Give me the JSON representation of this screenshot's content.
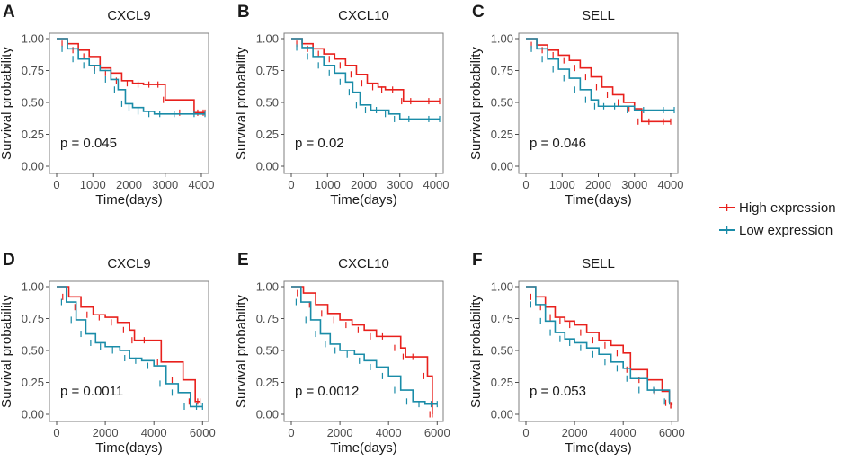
{
  "chart_data": [
    {
      "panel": "A",
      "type": "line",
      "title": "CXCL9",
      "xlabel": "Time(days)",
      "ylabel": "Survival probability",
      "xlim": [
        0,
        4100
      ],
      "ylim": [
        0,
        1
      ],
      "xticks": [
        "0",
        "1000",
        "2000",
        "3000",
        "4000"
      ],
      "yticks": [
        "0.00",
        "0.25",
        "0.50",
        "0.75",
        "1.00"
      ],
      "p_value": "p = 0.045",
      "series": [
        {
          "name": "High expression",
          "x": [
            0,
            300,
            600,
            900,
            1200,
            1500,
            1800,
            2100,
            2400,
            2700,
            2900,
            3000,
            3800,
            4000,
            4100
          ],
          "y": [
            1.0,
            0.96,
            0.91,
            0.86,
            0.77,
            0.73,
            0.67,
            0.65,
            0.64,
            0.64,
            0.64,
            0.52,
            0.42,
            0.42,
            0.42
          ]
        },
        {
          "name": "Low expression",
          "x": [
            0,
            300,
            600,
            900,
            1200,
            1500,
            1700,
            1900,
            2100,
            2400,
            2700,
            3000,
            3500,
            4100
          ],
          "y": [
            1.0,
            0.92,
            0.84,
            0.79,
            0.75,
            0.68,
            0.6,
            0.49,
            0.46,
            0.43,
            0.41,
            0.41,
            0.41,
            0.41
          ]
        }
      ]
    },
    {
      "panel": "B",
      "type": "line",
      "title": "CXCL10",
      "xlabel": "Time(days)",
      "ylabel": "Survival probability",
      "xlim": [
        0,
        4100
      ],
      "ylim": [
        0,
        1
      ],
      "xticks": [
        "0",
        "1000",
        "2000",
        "3000",
        "4000"
      ],
      "yticks": [
        "0.00",
        "0.25",
        "0.50",
        "0.75",
        "1.00"
      ],
      "p_value": "p = 0.02",
      "series": [
        {
          "name": "High expression",
          "x": [
            0,
            300,
            600,
            900,
            1200,
            1500,
            1800,
            2100,
            2400,
            2600,
            3000,
            3100,
            3500,
            4100
          ],
          "y": [
            1.0,
            0.96,
            0.92,
            0.88,
            0.84,
            0.79,
            0.72,
            0.65,
            0.62,
            0.6,
            0.6,
            0.51,
            0.51,
            0.51
          ]
        },
        {
          "name": "Low expression",
          "x": [
            0,
            300,
            600,
            900,
            1200,
            1500,
            1700,
            1900,
            2200,
            2500,
            2700,
            3000,
            3500,
            4100
          ],
          "y": [
            1.0,
            0.93,
            0.86,
            0.79,
            0.73,
            0.66,
            0.58,
            0.48,
            0.44,
            0.44,
            0.41,
            0.37,
            0.37,
            0.37
          ]
        }
      ]
    },
    {
      "panel": "C",
      "type": "line",
      "title": "SELL",
      "xlabel": "Time(days)",
      "ylabel": "Survival probability",
      "xlim": [
        0,
        4100
      ],
      "ylim": [
        0,
        1
      ],
      "xticks": [
        "0",
        "1000",
        "2000",
        "3000",
        "4000"
      ],
      "yticks": [
        "0.00",
        "0.25",
        "0.50",
        "0.75",
        "1.00"
      ],
      "p_value": "p = 0.046",
      "series": [
        {
          "name": "High expression",
          "x": [
            0,
            300,
            600,
            900,
            1200,
            1500,
            1800,
            2100,
            2400,
            2700,
            3000,
            3200,
            3600,
            4000
          ],
          "y": [
            1.0,
            0.95,
            0.91,
            0.87,
            0.83,
            0.77,
            0.7,
            0.62,
            0.56,
            0.5,
            0.45,
            0.35,
            0.35,
            0.35
          ]
        },
        {
          "name": "Low expression",
          "x": [
            0,
            300,
            600,
            900,
            1200,
            1500,
            1800,
            2000,
            2300,
            2600,
            3000,
            3500,
            4100
          ],
          "y": [
            1.0,
            0.92,
            0.84,
            0.76,
            0.69,
            0.6,
            0.52,
            0.47,
            0.47,
            0.47,
            0.44,
            0.44,
            0.44
          ]
        }
      ]
    },
    {
      "panel": "D",
      "type": "line",
      "title": "CXCL9",
      "xlabel": "Time(days)",
      "ylabel": "Survival probability",
      "xlim": [
        0,
        6100
      ],
      "ylim": [
        0,
        1
      ],
      "xticks": [
        "0",
        "2000",
        "4000",
        "6000"
      ],
      "yticks": [
        "0.00",
        "0.25",
        "0.50",
        "0.75",
        "1.00"
      ],
      "p_value": "p = 0.0011",
      "series": [
        {
          "name": "High expression",
          "x": [
            0,
            500,
            1000,
            1500,
            2000,
            2500,
            3000,
            3200,
            4000,
            4300,
            5200,
            5700,
            5900
          ],
          "y": [
            1.0,
            0.92,
            0.84,
            0.78,
            0.76,
            0.72,
            0.66,
            0.58,
            0.58,
            0.41,
            0.27,
            0.1,
            0.1
          ]
        },
        {
          "name": "Low expression",
          "x": [
            0,
            400,
            800,
            1200,
            1600,
            2000,
            2600,
            3000,
            3500,
            4000,
            4500,
            5000,
            5500,
            6000
          ],
          "y": [
            1.0,
            0.88,
            0.74,
            0.63,
            0.56,
            0.53,
            0.5,
            0.44,
            0.42,
            0.38,
            0.24,
            0.17,
            0.06,
            0.06
          ]
        }
      ]
    },
    {
      "panel": "E",
      "type": "line",
      "title": "CXCL10",
      "xlabel": "Time(days)",
      "ylabel": "Survival probability",
      "xlim": [
        0,
        6100
      ],
      "ylim": [
        0,
        1
      ],
      "xticks": [
        "0",
        "2000",
        "4000",
        "6000"
      ],
      "yticks": [
        "0.00",
        "0.25",
        "0.50",
        "0.75",
        "1.00"
      ],
      "p_value": "p = 0.0012",
      "series": [
        {
          "name": "High expression",
          "x": [
            0,
            500,
            1000,
            1500,
            2000,
            2500,
            3000,
            3500,
            4000,
            4500,
            4700,
            5300,
            5600,
            5800
          ],
          "y": [
            1.0,
            0.95,
            0.86,
            0.79,
            0.74,
            0.7,
            0.66,
            0.61,
            0.61,
            0.52,
            0.45,
            0.45,
            0.3,
            0.0
          ]
        },
        {
          "name": "Low expression",
          "x": [
            0,
            400,
            800,
            1200,
            1600,
            2000,
            2600,
            3000,
            3500,
            4000,
            4500,
            5000,
            5500,
            6000
          ],
          "y": [
            1.0,
            0.88,
            0.74,
            0.63,
            0.55,
            0.5,
            0.47,
            0.42,
            0.37,
            0.3,
            0.19,
            0.1,
            0.08,
            0.08
          ]
        }
      ]
    },
    {
      "panel": "F",
      "type": "line",
      "title": "SELL",
      "xlabel": "Time(days)",
      "ylabel": "Survival probability",
      "xlim": [
        0,
        6100
      ],
      "ylim": [
        0,
        1
      ],
      "xticks": [
        "0",
        "2000",
        "4000",
        "6000"
      ],
      "yticks": [
        "0.00",
        "0.25",
        "0.50",
        "0.75",
        "1.00"
      ],
      "p_value": "p = 0.053",
      "series": [
        {
          "name": "High expression",
          "x": [
            0,
            400,
            800,
            1200,
            1600,
            2000,
            2500,
            3000,
            3500,
            4000,
            4300,
            5000,
            5600,
            5900,
            6000
          ],
          "y": [
            1.0,
            0.92,
            0.84,
            0.76,
            0.73,
            0.7,
            0.64,
            0.58,
            0.54,
            0.48,
            0.35,
            0.27,
            0.18,
            0.09,
            0.07
          ]
        },
        {
          "name": "Low expression",
          "x": [
            0,
            400,
            800,
            1200,
            1600,
            2000,
            2500,
            3000,
            3500,
            4000,
            4300,
            5000,
            5500,
            5900
          ],
          "y": [
            1.0,
            0.86,
            0.73,
            0.64,
            0.59,
            0.56,
            0.52,
            0.47,
            0.41,
            0.36,
            0.28,
            0.19,
            0.19,
            0.1
          ]
        }
      ]
    }
  ],
  "legend": {
    "items": [
      {
        "label": "High expression",
        "color": "#e8201c"
      },
      {
        "label": "Low expression",
        "color": "#1a8ca8"
      }
    ]
  }
}
